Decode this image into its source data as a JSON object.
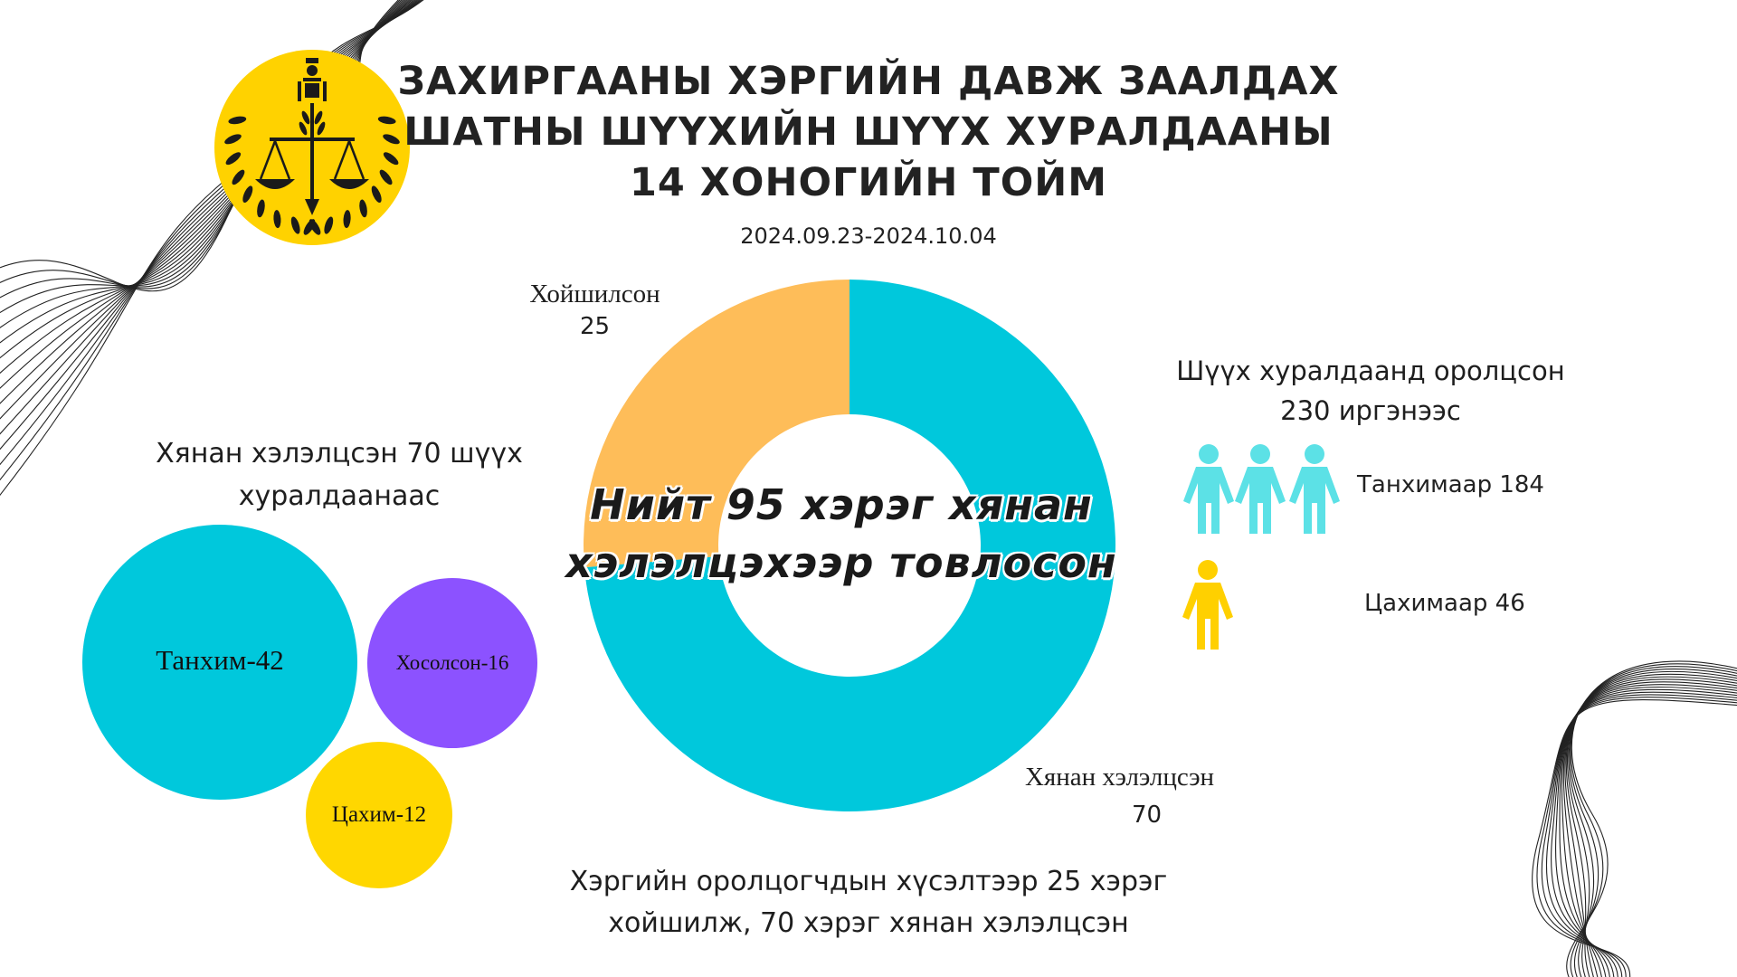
{
  "header": {
    "title_line1": "ЗАХИРГААНЫ ХЭРГИЙН ДАВЖ ЗААЛДАХ",
    "title_line2": "ШАТНЫ ШҮҮХИЙН ШҮҮХ ХУРАЛДААНЫ",
    "title_line3": "14 ХОНОГИЙН ТОЙМ",
    "date_range": "2024.09.23-2024.10.04"
  },
  "colors": {
    "cyan": "#00C8DC",
    "orange": "#FEBD59",
    "purple": "#8C52FF",
    "yellow": "#FFD700",
    "person_cyan": "#5CE1E6",
    "person_yellow": "#FFD000"
  },
  "chart_data": [
    {
      "type": "pie",
      "categories": [
        "Хойшилсон",
        "Хянан хэлэлцсэн"
      ],
      "values": [
        25,
        70
      ],
      "center_text_line1": "Нийт 95 хэрэг хянан",
      "center_text_line2": "хэлэлцэхээр товлосон",
      "labels": [
        {
          "name": "Хойшилсон",
          "value": "25"
        },
        {
          "name": "Хянан хэлэлцсэн",
          "value": "70"
        }
      ]
    },
    {
      "type": "bubble",
      "caption_line1": "Хянан хэлэлцсэн 70 шүүх",
      "caption_line2": "хуралдаанаас",
      "items": [
        {
          "label": "Танхим-42",
          "value": 42
        },
        {
          "label": "Хосолсон-16",
          "value": 16
        },
        {
          "label": "Цахим-12",
          "value": 12
        }
      ]
    }
  ],
  "attendance": {
    "caption_line1": "Шүүх хуралдаанд оролцсон",
    "caption_line2": "230 иргэнээс",
    "in_person_label": "Танхимаар 184",
    "online_label": "Цахимаар 46",
    "icons": [
      "person-icon",
      "person-icon",
      "person-icon",
      "person-icon"
    ]
  },
  "footer": {
    "line1": "Хэргийн оролцогчдын хүсэлтээр 25 хэрэг",
    "line2": "хойшилж, 70 хэрэг хянан хэлэлцсэн"
  }
}
